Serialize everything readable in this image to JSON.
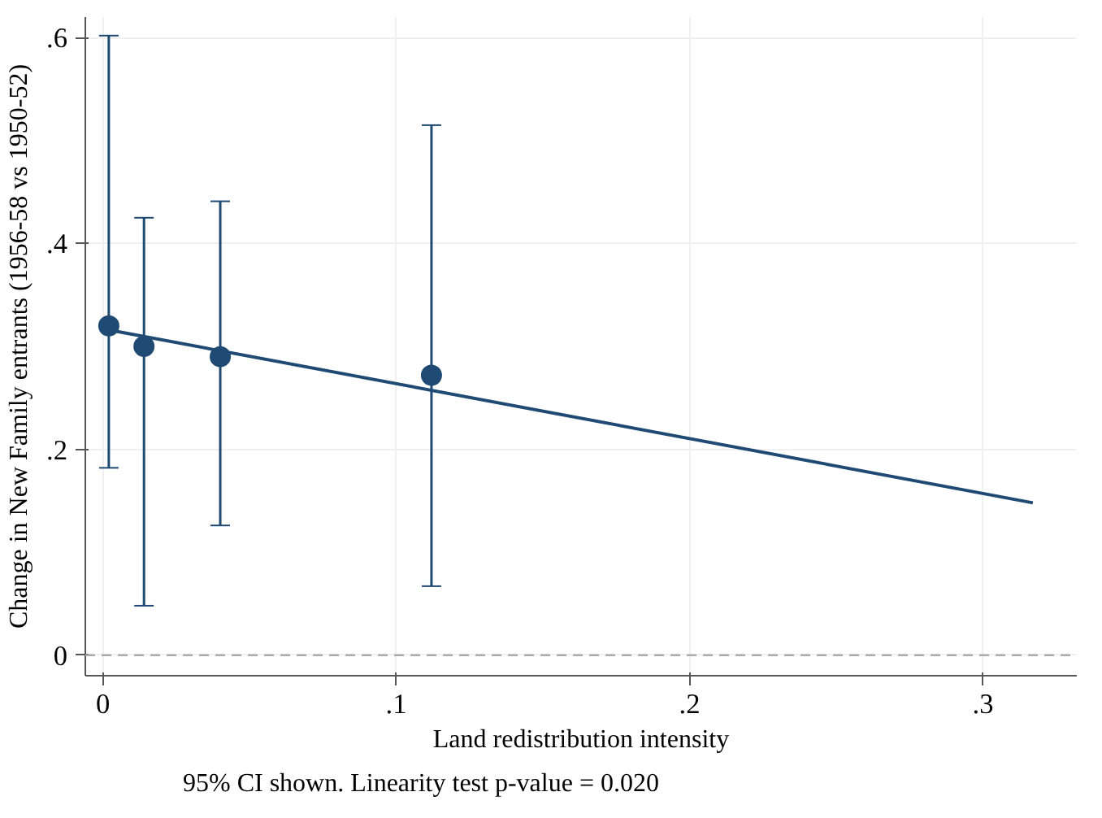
{
  "chart_data": {
    "type": "scatter",
    "xlabel": "Land redistribution intensity",
    "ylabel": "Change in New Family entrants (1956-58 vs 1950-52)",
    "annotations": [
      "95% CI shown. Linearity test p-value = 0.020"
    ],
    "xlim": [
      -0.006,
      0.332
    ],
    "ylim": [
      -0.02,
      0.62
    ],
    "xticks": [
      {
        "value": 0,
        "label": "0"
      },
      {
        "value": 0.1,
        "label": ".1"
      },
      {
        "value": 0.2,
        "label": ".2"
      },
      {
        "value": 0.3,
        "label": ".3"
      }
    ],
    "yticks": [
      {
        "value": 0,
        "label": "0"
      },
      {
        "value": 0.2,
        "label": ".2"
      },
      {
        "value": 0.4,
        "label": ".4"
      },
      {
        "value": 0.6,
        "label": ".6"
      }
    ],
    "grid": true,
    "marker": "circle",
    "ref_lines": [
      {
        "axis": "y",
        "value": 0,
        "color": "#aaaaaa",
        "line_style": "dashed"
      }
    ],
    "series": [
      {
        "color": "#1f4a73",
        "x": [
          0.002,
          0.014,
          0.04,
          0.112
        ],
        "values": [
          0.32,
          0.3,
          0.29,
          0.272
        ],
        "errors": [
          [
            0.182,
            0.602
          ],
          [
            0.048,
            0.425
          ],
          [
            0.126,
            0.441
          ],
          [
            0.067,
            0.515
          ]
        ]
      },
      {
        "type": "line",
        "color": "#1f4a73",
        "x": [
          0.002,
          0.317
        ],
        "values": [
          0.316,
          0.148
        ],
        "marker": "none"
      }
    ]
  }
}
